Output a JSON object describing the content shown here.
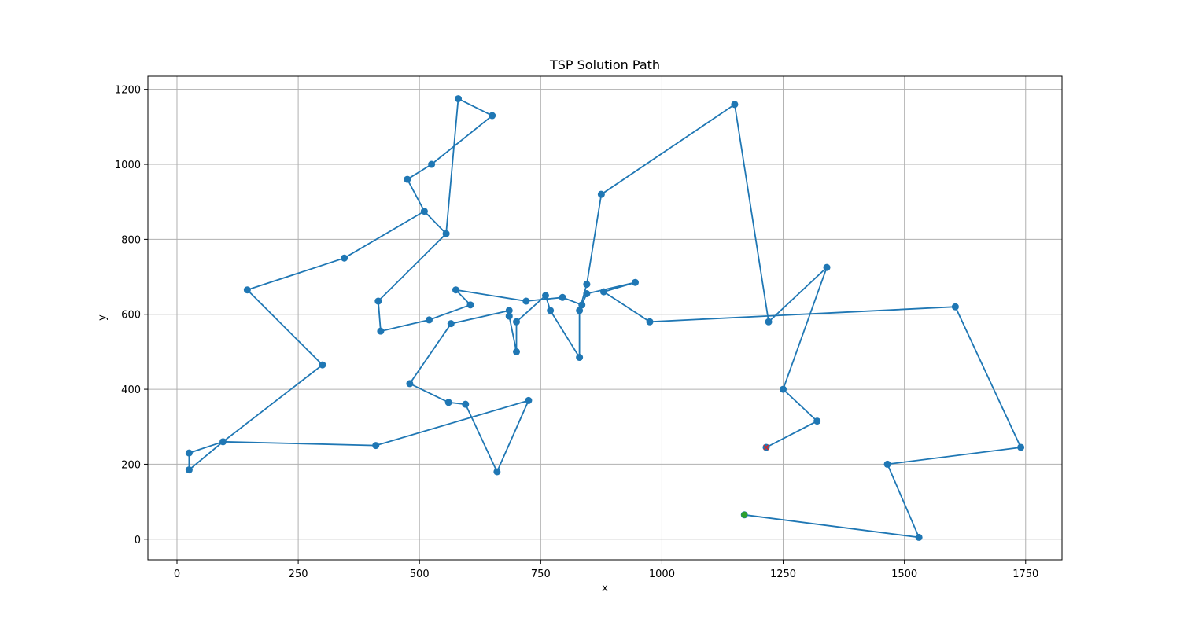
{
  "chart_data": {
    "type": "line",
    "title": "TSP Solution Path",
    "xlabel": "x",
    "ylabel": "y",
    "xlim": [
      -60,
      1825
    ],
    "ylim": [
      -55,
      1235
    ],
    "xticks": [
      0,
      250,
      500,
      750,
      1000,
      1250,
      1500,
      1750
    ],
    "yticks": [
      0,
      200,
      400,
      600,
      800,
      1000,
      1200
    ],
    "grid": true,
    "colors": {
      "path": "#1f77b4",
      "start": "#2ca02c",
      "end": "#d62728"
    },
    "points": [
      [
        1170,
        65
      ],
      [
        1530,
        5
      ],
      [
        1465,
        200
      ],
      [
        1740,
        245
      ],
      [
        1605,
        620
      ],
      [
        975,
        580
      ],
      [
        880,
        660
      ],
      [
        945,
        685
      ],
      [
        845,
        655
      ],
      [
        835,
        625
      ],
      [
        795,
        645
      ],
      [
        720,
        635
      ],
      [
        575,
        665
      ],
      [
        605,
        625
      ],
      [
        520,
        585
      ],
      [
        420,
        555
      ],
      [
        415,
        635
      ],
      [
        555,
        815
      ],
      [
        510,
        875
      ],
      [
        345,
        750
      ],
      [
        145,
        665
      ],
      [
        300,
        465
      ],
      [
        95,
        260
      ],
      [
        25,
        230
      ],
      [
        25,
        185
      ],
      [
        95,
        260
      ],
      [
        410,
        250
      ],
      [
        725,
        370
      ],
      [
        660,
        180
      ],
      [
        595,
        360
      ],
      [
        560,
        365
      ],
      [
        480,
        415
      ],
      [
        565,
        575
      ],
      [
        685,
        610
      ],
      [
        685,
        595
      ],
      [
        700,
        500
      ],
      [
        700,
        580
      ],
      [
        760,
        650
      ],
      [
        770,
        610
      ],
      [
        830,
        485
      ],
      [
        830,
        610
      ],
      [
        845,
        680
      ],
      [
        875,
        920
      ],
      [
        1150,
        1160
      ],
      [
        1220,
        580
      ],
      [
        1340,
        725
      ],
      [
        1250,
        400
      ],
      [
        1320,
        315
      ],
      [
        1215,
        245
      ]
    ],
    "top_loop": [
      [
        555,
        815
      ],
      [
        580,
        1175
      ],
      [
        650,
        1130
      ],
      [
        525,
        1000
      ],
      [
        475,
        960
      ],
      [
        510,
        875
      ]
    ],
    "start": [
      1170,
      65
    ],
    "end": [
      1215,
      245
    ]
  }
}
